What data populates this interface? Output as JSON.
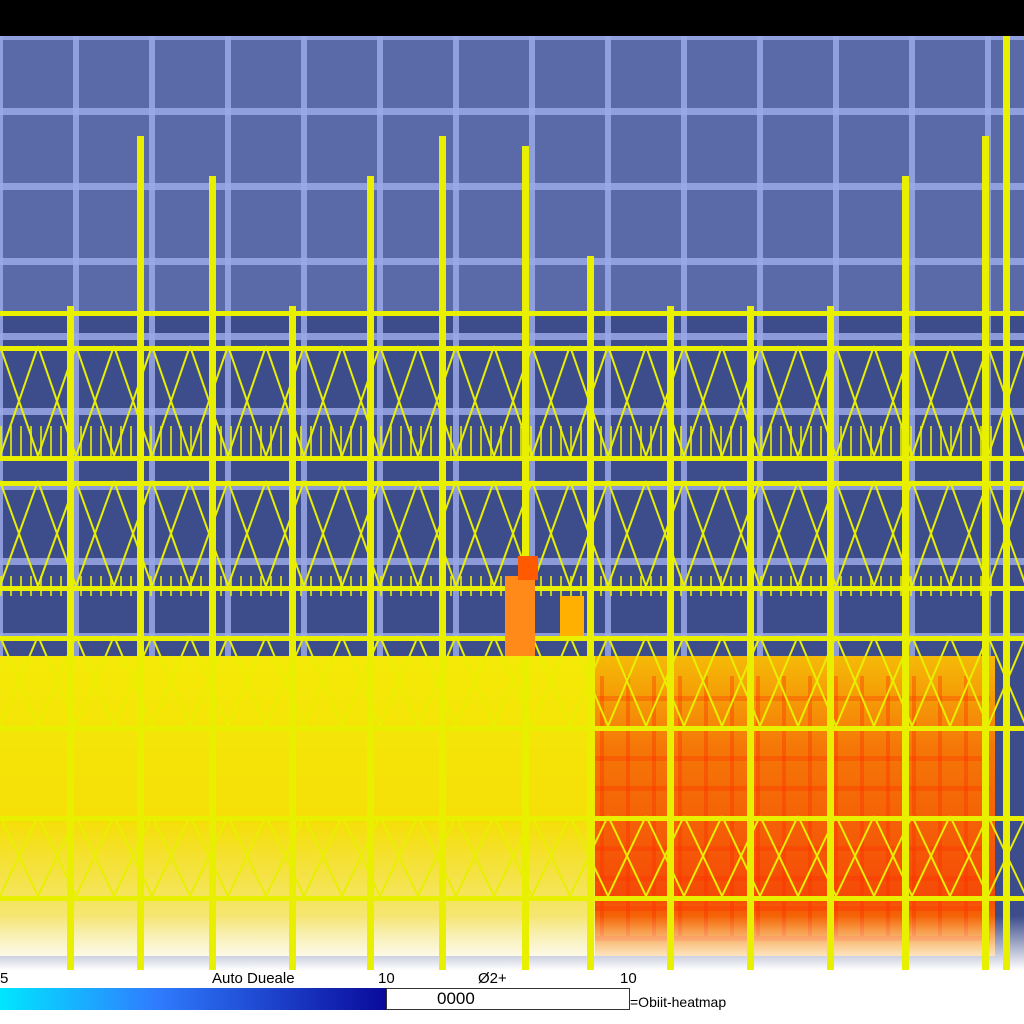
{
  "toolbar": {
    "left_value": "5",
    "mode_label": "Auto Dueale",
    "value_a": "10",
    "value_b": "Ø2+",
    "value_c": "10"
  },
  "field": {
    "value": "0000"
  },
  "colormap": {
    "label": "=Obiit-heatmap",
    "stops": [
      "#00e6ff",
      "#2f7dff",
      "#0a0a9a"
    ]
  },
  "scene": {
    "background": "#3d4d8c",
    "grid_color": "#9aa8e6",
    "scaffold_color": "#e8f000",
    "hot_color": "#ff3a00",
    "warm_color": "#ffd800"
  }
}
